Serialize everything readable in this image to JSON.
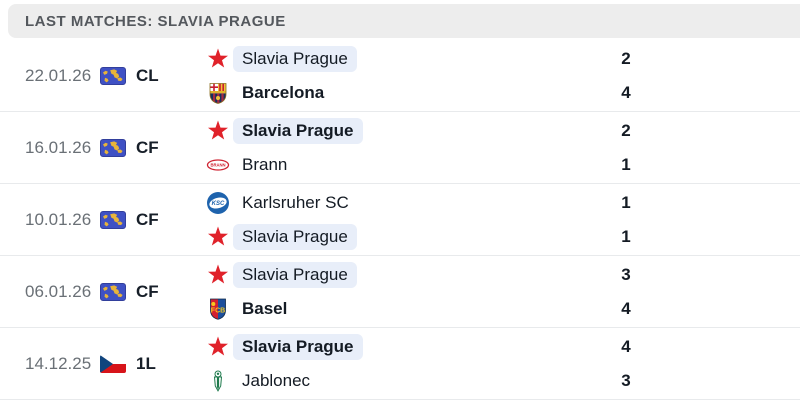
{
  "header": {
    "title": "LAST MATCHES: SLAVIA PRAGUE"
  },
  "matches": [
    {
      "date": "22.01.26",
      "competition": {
        "label": "CL",
        "icon": "world-map-icon"
      },
      "home": {
        "name": "Slavia Prague",
        "logo": "slavia-prague-crest",
        "score": "2",
        "highlighted": true,
        "bold": false
      },
      "away": {
        "name": "Barcelona",
        "logo": "barcelona-crest",
        "score": "4",
        "highlighted": false,
        "bold": true
      }
    },
    {
      "date": "16.01.26",
      "competition": {
        "label": "CF",
        "icon": "world-map-icon"
      },
      "home": {
        "name": "Slavia Prague",
        "logo": "slavia-prague-crest",
        "score": "2",
        "highlighted": true,
        "bold": true
      },
      "away": {
        "name": "Brann",
        "logo": "brann-crest",
        "score": "1",
        "highlighted": false,
        "bold": false
      }
    },
    {
      "date": "10.01.26",
      "competition": {
        "label": "CF",
        "icon": "world-map-icon"
      },
      "home": {
        "name": "Karlsruher SC",
        "logo": "karlsruher-crest",
        "score": "1",
        "highlighted": false,
        "bold": false
      },
      "away": {
        "name": "Slavia Prague",
        "logo": "slavia-prague-crest",
        "score": "1",
        "highlighted": true,
        "bold": false
      }
    },
    {
      "date": "06.01.26",
      "competition": {
        "label": "CF",
        "icon": "world-map-icon"
      },
      "home": {
        "name": "Slavia Prague",
        "logo": "slavia-prague-crest",
        "score": "3",
        "highlighted": true,
        "bold": false
      },
      "away": {
        "name": "Basel",
        "logo": "basel-crest",
        "score": "4",
        "highlighted": false,
        "bold": true
      }
    },
    {
      "date": "14.12.25",
      "competition": {
        "label": "1L",
        "icon": "czech-flag-icon"
      },
      "home": {
        "name": "Slavia Prague",
        "logo": "slavia-prague-crest",
        "score": "4",
        "highlighted": true,
        "bold": true
      },
      "away": {
        "name": "Jablonec",
        "logo": "jablonec-crest",
        "score": "3",
        "highlighted": false,
        "bold": false
      }
    }
  ],
  "colors": {
    "header_bg": "#ededed",
    "header_text": "#54585d",
    "date_text": "#6a7076",
    "team_text": "#141b24",
    "highlight_pill_bg": "#e8eef9",
    "separator": "#e8eaec",
    "slavia_red": "#e0222a",
    "czech_flag_blue": "#11457e",
    "czech_flag_red": "#d7141a",
    "map_icon_blue": "#3f51c4",
    "map_icon_land": "#e8b43a"
  }
}
